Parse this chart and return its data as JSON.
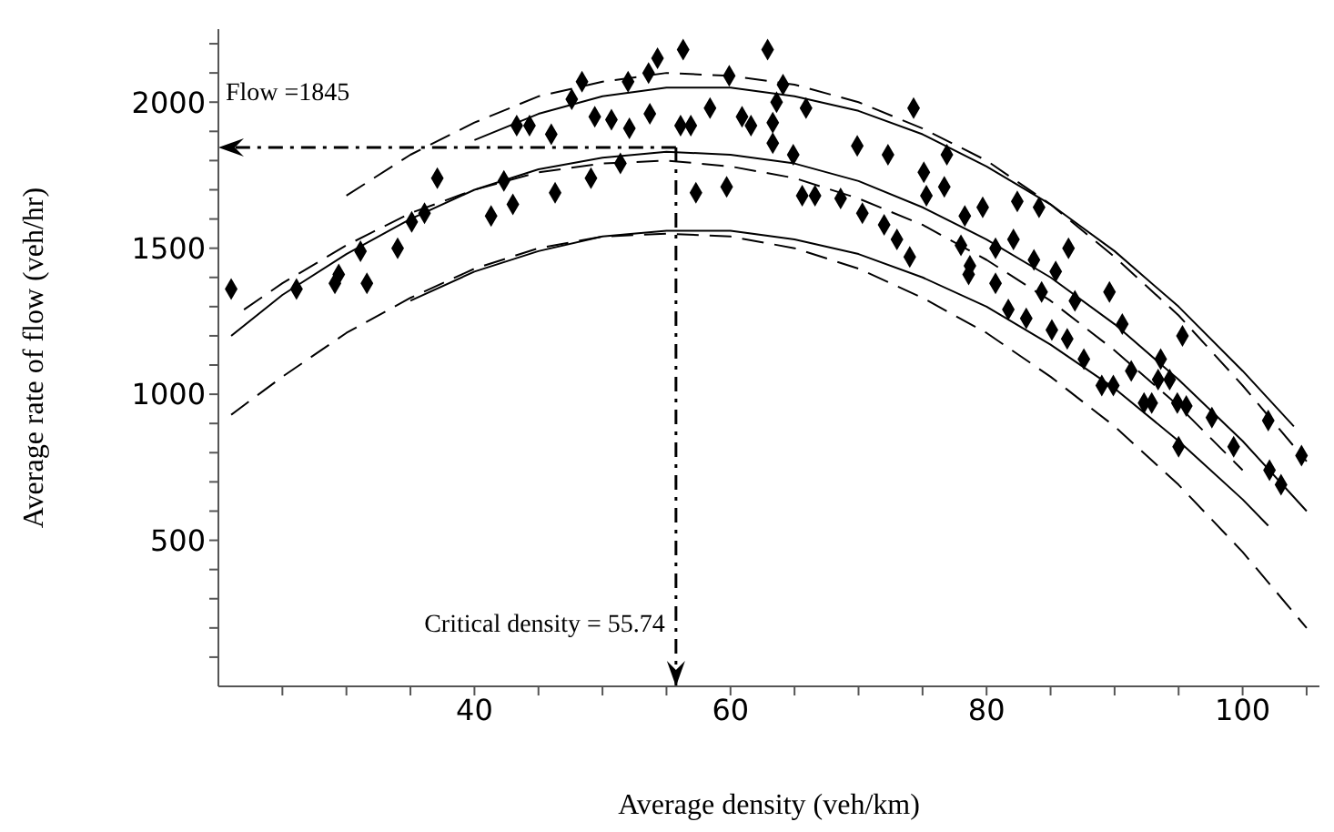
{
  "chart_data": {
    "type": "line",
    "xlabel": "Average density (veh/km)",
    "ylabel": "Average rate of flow (veh/hr)",
    "xlim": [
      20,
      106
    ],
    "ylim": [
      0,
      2250
    ],
    "xticks": [
      {
        "value": 25,
        "label": null
      },
      {
        "value": 30,
        "label": null
      },
      {
        "value": 35,
        "label": null
      },
      40,
      {
        "value": 45,
        "label": null
      },
      {
        "value": 50,
        "label": null
      },
      {
        "value": 55,
        "label": null
      },
      60,
      {
        "value": 65,
        "label": null
      },
      {
        "value": 70,
        "label": null
      },
      {
        "value": 75,
        "label": null
      },
      80,
      {
        "value": 85,
        "label": null
      },
      {
        "value": 90,
        "label": null
      },
      {
        "value": 95,
        "label": null
      },
      100,
      {
        "value": 105,
        "label": null
      }
    ],
    "yticks": [
      {
        "value": 100,
        "label": null
      },
      {
        "value": 200,
        "label": null
      },
      {
        "value": 300,
        "label": null
      },
      {
        "value": 400,
        "label": null
      },
      500,
      {
        "value": 600,
        "label": null
      },
      {
        "value": 700,
        "label": null
      },
      {
        "value": 800,
        "label": null
      },
      {
        "value": 900,
        "label": null
      },
      1000,
      {
        "value": 1100,
        "label": null
      },
      {
        "value": 1200,
        "label": null
      },
      {
        "value": 1300,
        "label": null
      },
      {
        "value": 1400,
        "label": null
      },
      1500,
      {
        "value": 1600,
        "label": null
      },
      {
        "value": 1700,
        "label": null
      },
      {
        "value": 1800,
        "label": null
      },
      {
        "value": 1900,
        "label": null
      },
      2000,
      {
        "value": 2100,
        "label": null
      },
      {
        "value": 2200,
        "label": null
      }
    ],
    "grid": false,
    "series": [
      {
        "color": "#000000",
        "line_style": "dashed",
        "x": [
          30,
          35,
          40,
          45,
          50,
          55,
          60,
          65,
          70,
          75,
          80,
          85,
          90,
          95,
          100,
          105
        ],
        "values": [
          1680,
          1820,
          1930,
          2020,
          2070,
          2100,
          2090,
          2060,
          2000,
          1910,
          1800,
          1650,
          1470,
          1270,
          1030,
          770
        ]
      },
      {
        "color": "#000000",
        "line_style": "solid",
        "x": [
          40,
          45,
          50,
          55,
          60,
          65,
          70,
          75,
          80,
          85,
          90,
          95,
          100,
          104
        ],
        "values": [
          1870,
          1960,
          2020,
          2050,
          2050,
          2020,
          1970,
          1890,
          1780,
          1650,
          1490,
          1300,
          1080,
          890
        ]
      },
      {
        "color": "#000000",
        "line_style": "solid",
        "x": [
          21,
          25,
          30,
          35,
          40,
          45,
          50,
          55,
          60,
          65,
          70,
          75,
          80,
          85,
          90,
          95,
          100,
          105
        ],
        "values": [
          1200,
          1340,
          1480,
          1600,
          1700,
          1770,
          1810,
          1830,
          1820,
          1790,
          1730,
          1640,
          1530,
          1400,
          1240,
          1050,
          840,
          600
        ]
      },
      {
        "color": "#000000",
        "line_style": "dashed",
        "x": [
          22,
          25,
          30,
          35,
          40,
          45,
          50,
          55,
          60,
          65,
          70,
          75,
          80,
          85,
          90,
          95,
          100
        ],
        "values": [
          1290,
          1380,
          1510,
          1620,
          1700,
          1760,
          1790,
          1800,
          1780,
          1740,
          1670,
          1580,
          1460,
          1320,
          1150,
          960,
          740
        ]
      },
      {
        "color": "#000000",
        "line_style": "solid",
        "x": [
          35,
          40,
          45,
          50,
          55,
          60,
          65,
          70,
          75,
          80,
          85,
          90,
          95,
          100,
          102
        ],
        "values": [
          1320,
          1420,
          1490,
          1540,
          1560,
          1560,
          1530,
          1480,
          1400,
          1300,
          1170,
          1020,
          840,
          640,
          550
        ]
      },
      {
        "color": "#000000",
        "line_style": "dashed",
        "x": [
          21,
          25,
          30,
          35,
          40,
          45,
          50,
          55,
          60,
          65,
          70,
          75,
          80,
          85,
          90,
          95,
          100,
          105
        ],
        "values": [
          930,
          1060,
          1210,
          1330,
          1430,
          1500,
          1540,
          1550,
          1540,
          1500,
          1430,
          1330,
          1210,
          1060,
          890,
          690,
          460,
          200
        ]
      },
      {
        "type": "scatter",
        "color": "#000000",
        "marker": "diamond",
        "x": [
          21.0,
          26.1,
          29.1,
          29.4,
          31.1,
          31.6,
          34.0,
          35.1,
          36.1,
          37.1,
          41.3,
          42.3,
          43.0,
          43.3,
          44.3,
          46.0,
          46.3,
          47.6,
          48.4,
          49.1,
          49.4,
          50.7,
          51.4,
          52.0,
          52.1,
          53.7,
          53.6,
          54.3,
          56.1,
          56.3,
          56.9,
          57.3,
          58.4,
          59.7,
          59.9,
          60.9,
          61.6,
          62.9,
          64.1,
          63.6,
          65.9,
          63.3,
          63.3,
          64.9,
          69.9,
          72.3,
          74.3,
          76.9,
          75.1,
          76.7,
          65.6,
          66.6,
          68.6,
          70.3,
          72.0,
          73.0,
          74.0,
          75.3,
          78.3,
          78.0,
          79.7,
          82.4,
          84.1,
          78.7,
          78.6,
          80.7,
          80.7,
          82.1,
          83.7,
          85.4,
          84.3,
          81.7,
          83.1,
          86.4,
          86.9,
          85.1,
          86.3,
          87.6,
          89.6,
          90.6,
          89.9,
          91.3,
          93.6,
          94.3,
          95.3,
          92.9,
          95.6,
          89.0,
          92.3,
          93.4,
          94.9,
          95.0,
          97.6,
          99.3,
          102.0,
          102.1,
          103.0,
          104.6
        ],
        "values": [
          1360,
          1360,
          1380,
          1410,
          1490,
          1380,
          1500,
          1590,
          1620,
          1740,
          1610,
          1730,
          1650,
          1920,
          1920,
          1890,
          1690,
          2010,
          2070,
          1740,
          1950,
          1940,
          1790,
          2070,
          1910,
          1960,
          2100,
          2150,
          1920,
          2180,
          1920,
          1690,
          1980,
          1710,
          2090,
          1950,
          1920,
          2180,
          2060,
          2000,
          1980,
          1930,
          1860,
          1820,
          1850,
          1820,
          1980,
          1820,
          1760,
          1710,
          1680,
          1680,
          1670,
          1620,
          1580,
          1530,
          1470,
          1680,
          1610,
          1510,
          1640,
          1660,
          1640,
          1440,
          1410,
          1380,
          1500,
          1530,
          1460,
          1420,
          1350,
          1290,
          1260,
          1500,
          1320,
          1220,
          1190,
          1120,
          1350,
          1240,
          1030,
          1080,
          1120,
          1050,
          1200,
          970,
          960,
          1030,
          970,
          1050,
          970,
          820,
          920,
          820,
          910,
          740,
          690,
          790
        ]
      }
    ],
    "ref_lines": [
      {
        "axis": "y",
        "value": 1845,
        "label": "Flow =1845",
        "line_style": "dashdot"
      },
      {
        "axis": "x",
        "value": 55.74,
        "label": "Critical density = 55.74",
        "line_style": "dashdot"
      }
    ]
  }
}
